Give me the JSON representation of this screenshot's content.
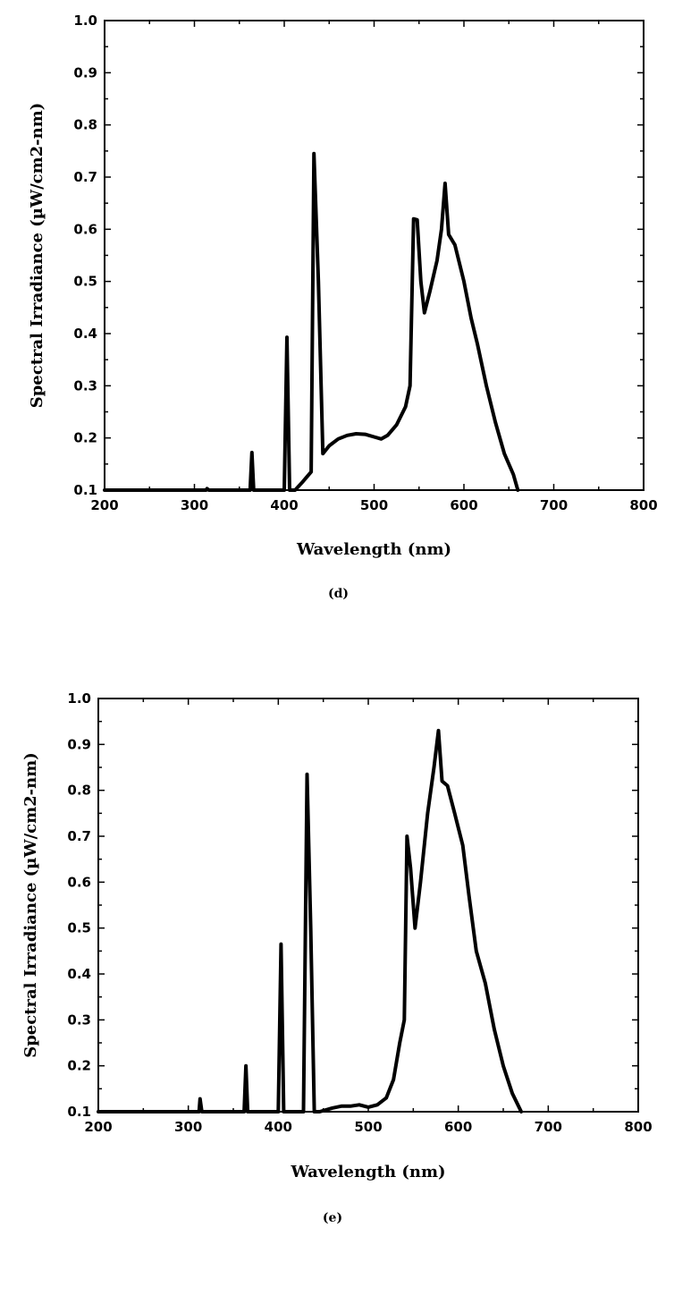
{
  "chart_data": [
    {
      "type": "line",
      "panel_label": "(d)",
      "xlabel": "Wavelength (nm)",
      "ylabel": "Spectral Irradiance (µW/cm2-nm)",
      "xlim": [
        200,
        800
      ],
      "ylim": [
        0.1,
        1.0
      ],
      "x_ticks": [
        "200",
        "300",
        "400",
        "500",
        "600",
        "700",
        "800"
      ],
      "y_ticks": [
        "0.1",
        "0.2",
        "0.3",
        "0.4",
        "0.5",
        "0.6",
        "0.7",
        "0.8",
        "0.9",
        "1.0"
      ],
      "series": [
        {
          "points": [
            [
              200,
              0.1
            ],
            [
              313,
              0.1
            ],
            [
              314,
              0.103
            ],
            [
              316,
              0.1
            ],
            [
              362,
              0.1
            ],
            [
              364,
              0.172
            ],
            [
              366,
              0.1
            ],
            [
              400,
              0.1
            ],
            [
              403,
              0.393
            ],
            [
              406,
              0.1
            ],
            [
              410,
              0.1
            ],
            [
              412,
              0.1
            ],
            [
              420,
              0.115
            ],
            [
              430,
              0.135
            ],
            [
              433,
              0.745
            ],
            [
              438,
              0.5
            ],
            [
              443,
              0.17
            ],
            [
              450,
              0.185
            ],
            [
              460,
              0.198
            ],
            [
              470,
              0.205
            ],
            [
              480,
              0.208
            ],
            [
              490,
              0.207
            ],
            [
              500,
              0.202
            ],
            [
              508,
              0.198
            ],
            [
              515,
              0.205
            ],
            [
              525,
              0.225
            ],
            [
              535,
              0.26
            ],
            [
              540,
              0.3
            ],
            [
              544,
              0.62
            ],
            [
              548,
              0.618
            ],
            [
              552,
              0.5
            ],
            [
              556,
              0.44
            ],
            [
              562,
              0.48
            ],
            [
              570,
              0.54
            ],
            [
              575,
              0.6
            ],
            [
              579,
              0.688
            ],
            [
              583,
              0.59
            ],
            [
              590,
              0.57
            ],
            [
              600,
              0.5
            ],
            [
              608,
              0.43
            ],
            [
              615,
              0.38
            ],
            [
              625,
              0.3
            ],
            [
              635,
              0.23
            ],
            [
              645,
              0.17
            ],
            [
              655,
              0.13
            ],
            [
              660,
              0.1
            ]
          ]
        }
      ]
    },
    {
      "type": "line",
      "panel_label": "(e)",
      "xlabel": "Wavelength (nm)",
      "ylabel": "Spectral Irradiance (µW/cm2-nm)",
      "xlim": [
        200,
        800
      ],
      "ylim": [
        0.1,
        1.0
      ],
      "x_ticks": [
        "200",
        "300",
        "400",
        "500",
        "600",
        "700",
        "800"
      ],
      "y_ticks": [
        "0.1",
        "0.2",
        "0.3",
        "0.4",
        "0.5",
        "0.6",
        "0.7",
        "0.8",
        "0.9",
        "1.0"
      ],
      "series": [
        {
          "points": [
            [
              200,
              0.1
            ],
            [
              312,
              0.1
            ],
            [
              313,
              0.128
            ],
            [
              315,
              0.1
            ],
            [
              362,
              0.1
            ],
            [
              364,
              0.2
            ],
            [
              366,
              0.1
            ],
            [
              400,
              0.1
            ],
            [
              403,
              0.465
            ],
            [
              406,
              0.1
            ],
            [
              428,
              0.1
            ],
            [
              432,
              0.835
            ],
            [
              436,
              0.5
            ],
            [
              440,
              0.1
            ],
            [
              446,
              0.1
            ],
            [
              460,
              0.108
            ],
            [
              470,
              0.112
            ],
            [
              480,
              0.112
            ],
            [
              490,
              0.115
            ],
            [
              500,
              0.11
            ],
            [
              510,
              0.115
            ],
            [
              520,
              0.13
            ],
            [
              528,
              0.17
            ],
            [
              535,
              0.25
            ],
            [
              540,
              0.3
            ],
            [
              543,
              0.7
            ],
            [
              547,
              0.63
            ],
            [
              552,
              0.5
            ],
            [
              558,
              0.6
            ],
            [
              566,
              0.75
            ],
            [
              573,
              0.85
            ],
            [
              578,
              0.93
            ],
            [
              582,
              0.82
            ],
            [
              588,
              0.81
            ],
            [
              596,
              0.75
            ],
            [
              605,
              0.68
            ],
            [
              612,
              0.57
            ],
            [
              620,
              0.45
            ],
            [
              630,
              0.38
            ],
            [
              640,
              0.28
            ],
            [
              650,
              0.2
            ],
            [
              660,
              0.14
            ],
            [
              670,
              0.1
            ]
          ]
        }
      ]
    }
  ]
}
